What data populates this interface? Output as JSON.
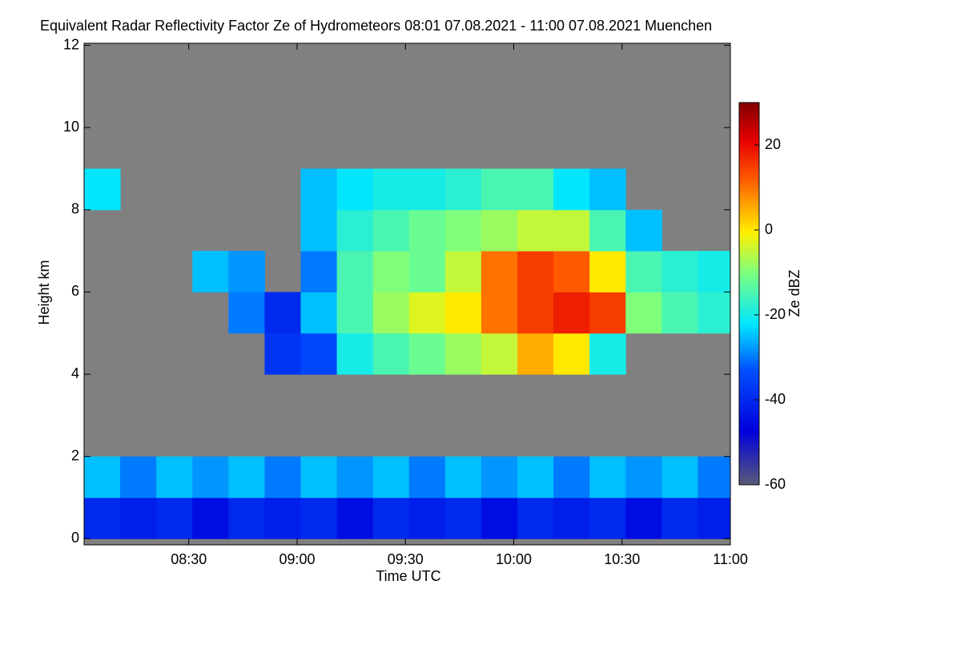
{
  "chart_data": {
    "type": "heatmap",
    "title": "Equivalent Radar Reflectivity Factor Ze of Hydrometeors   08:01 07.08.2021 - 11:00 07.08.2021 Muenchen",
    "x_label": "Time UTC",
    "y_label": "Height km",
    "colorbar_label": "Ze dBZ",
    "background": "#808080",
    "x": [
      486,
      496,
      506,
      516,
      526,
      536,
      546,
      556,
      566,
      576,
      586,
      596,
      606,
      616,
      626,
      636,
      646,
      656
    ],
    "y": [
      0.5,
      1.5,
      2.5,
      3.5,
      4.5,
      5.5,
      6.5,
      7.5,
      8.5,
      9.5,
      10.5,
      11.5
    ],
    "z": [
      [
        -40,
        -42,
        -40,
        -45,
        -40,
        -42,
        -40,
        -45,
        -40,
        -42,
        -40,
        -45,
        -40,
        -42,
        -40,
        -45,
        -40,
        -42
      ],
      [
        -25,
        -30,
        -25,
        -28,
        -25,
        -30,
        -25,
        -28,
        -25,
        -30,
        -25,
        -28,
        -25,
        -30,
        -25,
        -28,
        -25,
        -30
      ],
      [
        null,
        null,
        null,
        null,
        null,
        null,
        null,
        null,
        null,
        null,
        null,
        null,
        null,
        null,
        null,
        null,
        null,
        null
      ],
      [
        null,
        null,
        null,
        null,
        null,
        null,
        null,
        null,
        null,
        null,
        null,
        null,
        null,
        null,
        null,
        null,
        null,
        null
      ],
      [
        null,
        null,
        null,
        null,
        null,
        -38,
        -35,
        -20,
        -15,
        -12,
        -8,
        -5,
        5,
        0,
        -20,
        null,
        null,
        null
      ],
      [
        null,
        null,
        null,
        null,
        -30,
        -40,
        -25,
        -15,
        -8,
        -3,
        0,
        10,
        15,
        18,
        15,
        -10,
        -15,
        -18
      ],
      [
        null,
        null,
        null,
        -25,
        -28,
        null,
        -30,
        -15,
        -10,
        -12,
        -5,
        10,
        15,
        12,
        0,
        -15,
        -18,
        -20
      ],
      [
        null,
        null,
        null,
        null,
        null,
        null,
        -25,
        -18,
        -15,
        -12,
        -10,
        -8,
        -5,
        -5,
        -15,
        -25,
        null,
        null
      ],
      [
        -22,
        null,
        null,
        null,
        null,
        null,
        -25,
        -22,
        -20,
        -20,
        -18,
        -15,
        -15,
        -22,
        -25,
        null,
        null,
        null
      ],
      [
        null,
        null,
        null,
        null,
        null,
        null,
        null,
        null,
        null,
        null,
        null,
        null,
        null,
        null,
        null,
        null,
        null,
        null
      ],
      [
        null,
        null,
        null,
        null,
        null,
        null,
        null,
        null,
        null,
        null,
        null,
        null,
        null,
        null,
        null,
        null,
        null,
        null
      ],
      [
        null,
        null,
        null,
        null,
        null,
        null,
        null,
        null,
        null,
        null,
        null,
        null,
        null,
        null,
        null,
        null,
        null,
        null
      ]
    ],
    "xlim": [
      481,
      660
    ],
    "xticks": [
      {
        "value": 510,
        "label": "08:30"
      },
      {
        "value": 540,
        "label": "09:00"
      },
      {
        "value": 570,
        "label": "09:30"
      },
      {
        "value": 600,
        "label": "10:00"
      },
      {
        "value": 630,
        "label": "10:30"
      },
      {
        "value": 660,
        "label": "11:00"
      }
    ],
    "ylim": [
      -0.15,
      12.05
    ],
    "yticks": [
      0,
      2,
      4,
      6,
      8,
      10,
      12
    ],
    "zlim": [
      -60,
      30
    ],
    "zticks": [
      -60,
      -40,
      -20,
      0,
      20
    ]
  }
}
